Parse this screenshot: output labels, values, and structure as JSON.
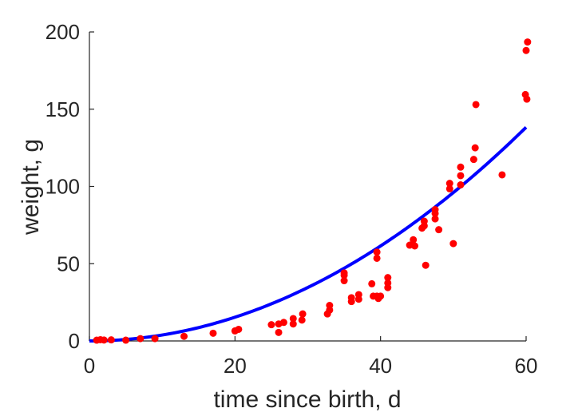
{
  "chart_data": {
    "type": "scatter",
    "xlabel": "time since birth, d",
    "ylabel": "weight, g",
    "xlim": [
      0,
      60
    ],
    "ylim": [
      0,
      200
    ],
    "xticks": [
      "0",
      "20",
      "40",
      "60"
    ],
    "yticks": [
      "0",
      "50",
      "100",
      "150",
      "200"
    ],
    "grid": false,
    "colors": {
      "points": "#ff0000",
      "fit": "#0000ff",
      "axes": "#262626"
    },
    "series": [
      {
        "type": "scatter",
        "points": [
          [
            1,
            0.5
          ],
          [
            1.5,
            0.8
          ],
          [
            2,
            0.6
          ],
          [
            3,
            0.7
          ],
          [
            5,
            0.5
          ],
          [
            7,
            1.5
          ],
          [
            9,
            1.5
          ],
          [
            13,
            3
          ],
          [
            17,
            5
          ],
          [
            20,
            6.5
          ],
          [
            20.5,
            7.5
          ],
          [
            25,
            10.5
          ],
          [
            26,
            11
          ],
          [
            26,
            5.5
          ],
          [
            26.7,
            12
          ],
          [
            28,
            11
          ],
          [
            28,
            14.5
          ],
          [
            29.2,
            13.5
          ],
          [
            29.3,
            17.5
          ],
          [
            32.7,
            17.5
          ],
          [
            33,
            20
          ],
          [
            33,
            23
          ],
          [
            35,
            39
          ],
          [
            35,
            44
          ],
          [
            35,
            42.5
          ],
          [
            36,
            28
          ],
          [
            36,
            25.5
          ],
          [
            37,
            27
          ],
          [
            37,
            30
          ],
          [
            38.8,
            37
          ],
          [
            39,
            29
          ],
          [
            39.5,
            29
          ],
          [
            39.5,
            53.5
          ],
          [
            39.5,
            57.5
          ],
          [
            39.7,
            27.5
          ],
          [
            40,
            29
          ],
          [
            41,
            41
          ],
          [
            41,
            37.5
          ],
          [
            41,
            34.5
          ],
          [
            44,
            62
          ],
          [
            44.5,
            65.5
          ],
          [
            44.7,
            61.5
          ],
          [
            45.7,
            73
          ],
          [
            46,
            74.5
          ],
          [
            46,
            77.5
          ],
          [
            46.2,
            49
          ],
          [
            47.5,
            79
          ],
          [
            47.5,
            82.5
          ],
          [
            47.5,
            85
          ],
          [
            48,
            72
          ],
          [
            49.5,
            98.5
          ],
          [
            49.5,
            102
          ],
          [
            50,
            63
          ],
          [
            51,
            101
          ],
          [
            51,
            107
          ],
          [
            51,
            112.5
          ],
          [
            52.8,
            117.5
          ],
          [
            53,
            125
          ],
          [
            53.1,
            153
          ],
          [
            56.7,
            107.5
          ],
          [
            59.9,
            159.5
          ],
          [
            60,
            188
          ],
          [
            60.1,
            156.5
          ],
          [
            60.2,
            193.5
          ]
        ]
      },
      {
        "type": "line",
        "function": "y = 0.038408 * x^2",
        "x_range": [
          0,
          60
        ],
        "y_end": 138.3
      }
    ]
  }
}
